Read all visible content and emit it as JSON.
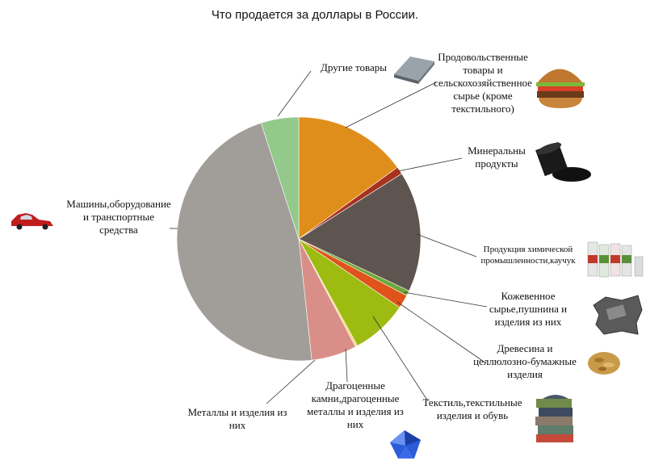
{
  "chart_data": {
    "type": "pie",
    "title": "Что продается за доллары в России.",
    "start_angle_deg": 0,
    "direction": "clockwise",
    "slices": [
      {
        "name": "Продовольственные товары и сельскохозяйственное сырье (кроме текстильного)",
        "value": 15.0,
        "color": "#e08e1b"
      },
      {
        "name": "Минеральны продукты",
        "value": 1.0,
        "color": "#a8321f"
      },
      {
        "name": "Продукция химической промышленности,каучук",
        "value": 16.0,
        "color": "#5f5550"
      },
      {
        "name": "Кожевенное сырье,пушнина и изделия из них",
        "value": 0.7,
        "color": "#6fa83a"
      },
      {
        "name": "Древесина и целлюлозно-бумажные изделия",
        "value": 1.8,
        "color": "#e0531b"
      },
      {
        "name": "Текстиль,текстильные изделия и обувь",
        "value": 7.5,
        "color": "#9ebb12"
      },
      {
        "name": "Драгоценные камни,драгоценные металлы и изделия из них",
        "value": 0.3,
        "color": "#f2d77a"
      },
      {
        "name": "Металлы и изделия из них",
        "value": 6.0,
        "color": "#d98f88"
      },
      {
        "name": "Машины,оборудование и транспортные средства",
        "value": 46.7,
        "color": "#a19e9a"
      },
      {
        "name": "Другие товары",
        "value": 5.0,
        "color": "#93c98a"
      }
    ]
  },
  "labels": {
    "food": "Продовольственные\nтовары и\nсельскохозяйственное\nсырье (кроме\nтекстильного)",
    "mineral": "Минеральны\nпродукты",
    "chem": "Продукция химической\nпромышленности,каучук",
    "leather": "Кожевенное\nсырье,пушнина и\nизделия из них",
    "wood": "Древесина и\nцеллюлозно-бумажные\nизделия",
    "textile": "Текстиль,текстильные\nизделия и обувь",
    "gems": "Драгоценные\nкамни,драгоценные\nметаллы и изделия из\nних",
    "metals": "Металлы и изделия из\nних",
    "machines": "Машины,оборудование\nи транспортные\nсредства",
    "other": "Другие товары"
  },
  "icons": {
    "food": "burger-icon",
    "mineral": "oil-barrel-icon",
    "chem": "chemical-bottles-icon",
    "leather": "leather-hide-icon",
    "wood": "wood-chips-icon",
    "textile": "fabric-stack-icon",
    "gems": "sapphire-gem-icon",
    "machines": "red-car-icon",
    "other": "metal-sheet-icon"
  }
}
